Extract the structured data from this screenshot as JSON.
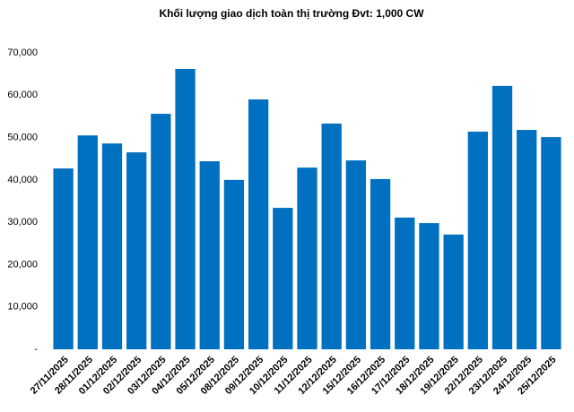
{
  "chart_data": {
    "type": "bar",
    "title": "Khối lượng giao dịch toàn thị trường Đvt: 1,000 CW",
    "categories": [
      "27/11/2025",
      "28/11/2025",
      "01/12/2025",
      "02/12/2025",
      "03/12/2025",
      "04/12/2025",
      "05/12/2025",
      "08/12/2025",
      "09/12/2025",
      "10/12/2025",
      "11/12/2025",
      "12/12/2025",
      "15/12/2025",
      "16/12/2025",
      "17/12/2025",
      "18/12/2025",
      "19/12/2025",
      "22/12/2025",
      "23/12/2025",
      "24/12/2025",
      "25/12/2025"
    ],
    "values": [
      42700,
      50500,
      48600,
      46500,
      55600,
      66200,
      44400,
      40000,
      59000,
      33400,
      42900,
      53300,
      44600,
      40200,
      31100,
      29800,
      27100,
      51400,
      62200,
      51800,
      50100
    ],
    "color": "#0070c0",
    "ylim": [
      0,
      70000
    ],
    "yticks": [
      {
        "value": 0,
        "label": "-"
      },
      {
        "value": 10000,
        "label": "10,000"
      },
      {
        "value": 20000,
        "label": "20,000"
      },
      {
        "value": 30000,
        "label": "30,000"
      },
      {
        "value": 40000,
        "label": "40,000"
      },
      {
        "value": 50000,
        "label": "50,000"
      },
      {
        "value": 60000,
        "label": "60,000"
      },
      {
        "value": 70000,
        "label": "70,000"
      }
    ],
    "grid": false
  }
}
